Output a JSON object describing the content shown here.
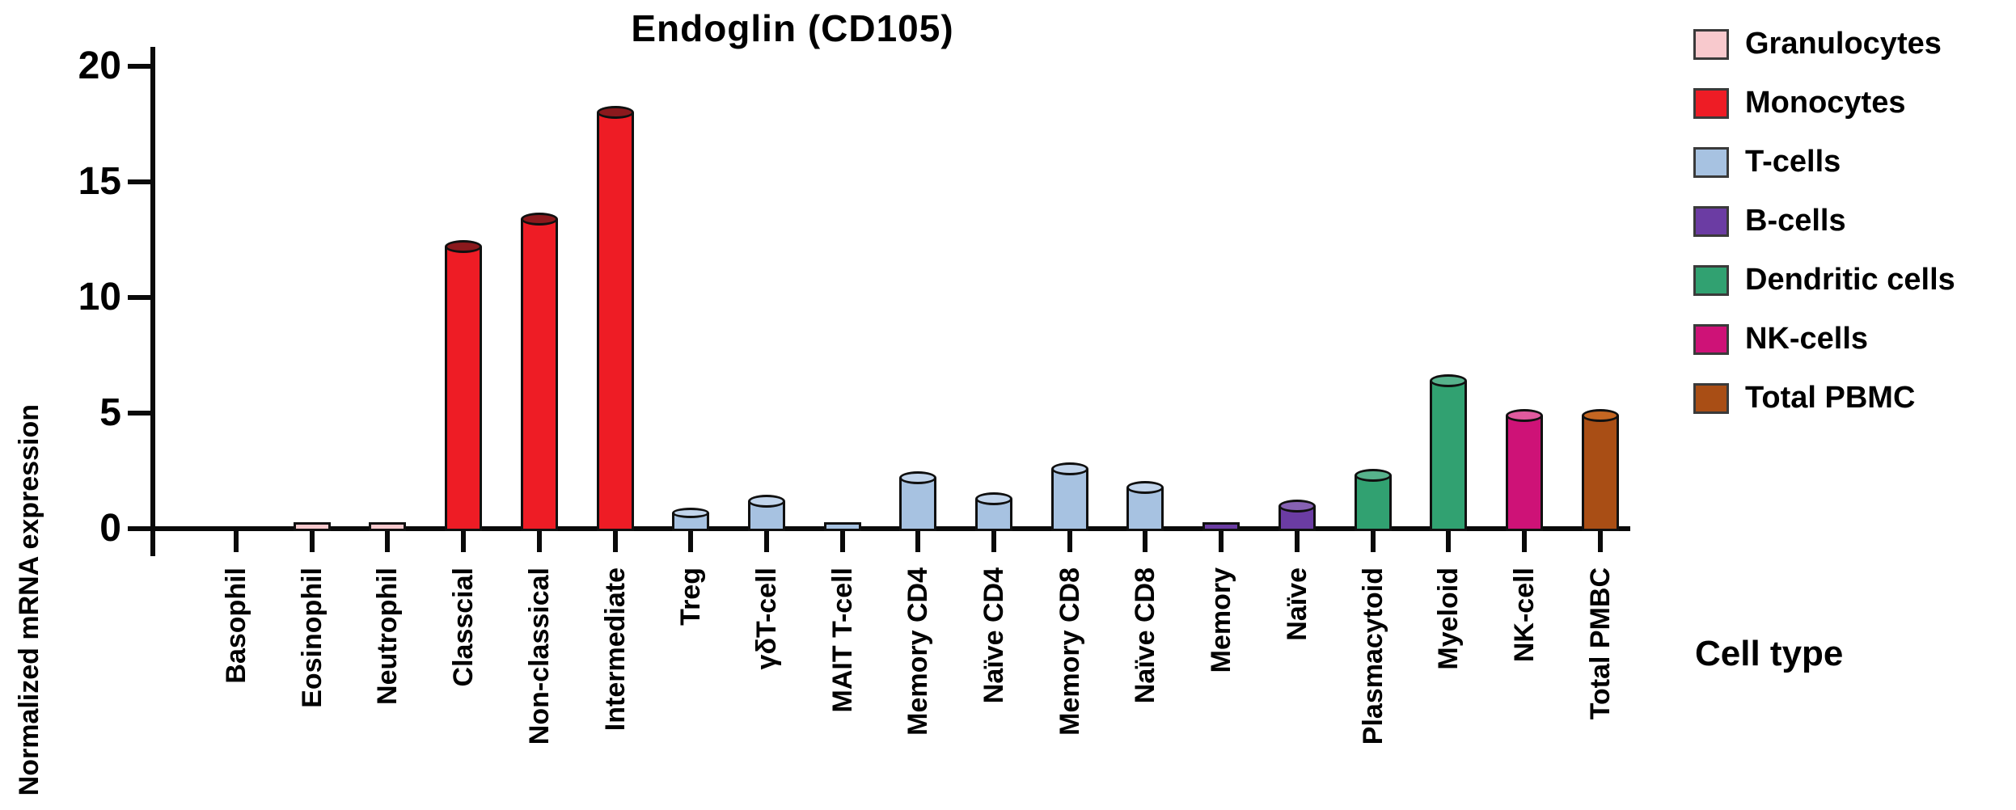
{
  "header": {
    "title": "Endoglin (CD105)"
  },
  "axes": {
    "y_label": "Normalized mRNA expression",
    "x_label": "Cell type",
    "y_ticks": [
      0,
      5,
      10,
      15,
      20
    ]
  },
  "legend": {
    "position": "right",
    "items": [
      {
        "label": "Granulocytes"
      },
      {
        "label": "Monocytes"
      },
      {
        "label": "T-cells"
      },
      {
        "label": "B-cells"
      },
      {
        "label": "Dendritic cells"
      },
      {
        "label": "NK-cells"
      },
      {
        "label": "Total PBMC"
      }
    ]
  },
  "chart_data": {
    "type": "bar",
    "title": "Endoglin (CD105)",
    "xlabel": "Cell type",
    "ylabel": "Normalized mRNA expression",
    "ylim": [
      0,
      20
    ],
    "yticks": [
      0,
      5,
      10,
      15,
      20
    ],
    "grid": false,
    "legend_position": "right",
    "bar_style": "cylinder",
    "categories": [
      "Basophil",
      "Eosinophil",
      "Neutrophil",
      "Classcial",
      "Non-classical",
      "Intermediate",
      "Treg",
      "γδT-cell",
      "MAIT T-cell",
      "Memory CD4",
      "Naïve CD4",
      "Memory CD8",
      "Naïve CD8",
      "Memory",
      "Naïve",
      "Plasmacytoid",
      "Myeloid",
      "NK-cell",
      "Total PMBC"
    ],
    "values": [
      0,
      0.4,
      0.4,
      12.3,
      13.5,
      18.1,
      0.8,
      1.3,
      0.4,
      2.3,
      1.4,
      2.7,
      1.9,
      0.4,
      1.1,
      2.4,
      6.5,
      5.0,
      5.0
    ],
    "bar_groups": [
      "Granulocytes",
      "Granulocytes",
      "Granulocytes",
      "Monocytes",
      "Monocytes",
      "Monocytes",
      "T-cells",
      "T-cells",
      "T-cells",
      "T-cells",
      "T-cells",
      "T-cells",
      "T-cells",
      "B-cells",
      "B-cells",
      "Dendritic cells",
      "Dendritic cells",
      "NK-cells",
      "Total PBMC"
    ],
    "group_styles": {
      "Granulocytes": {
        "fill": "#F8C9CD",
        "top": "#EBB2B8"
      },
      "Monocytes": {
        "fill": "#EE1C25",
        "top": "#8B191D"
      },
      "T-cells": {
        "fill": "#A7C2E1",
        "top": "#C2D5EC"
      },
      "B-cells": {
        "fill": "#6B3CA3",
        "top": "#8661B3"
      },
      "Dendritic cells": {
        "fill": "#31A171",
        "top": "#57B28C"
      },
      "NK-cells": {
        "fill": "#CE1277",
        "top": "#E05A9E"
      },
      "Total PBMC": {
        "fill": "#A94E15",
        "top": "#C46622"
      }
    }
  }
}
